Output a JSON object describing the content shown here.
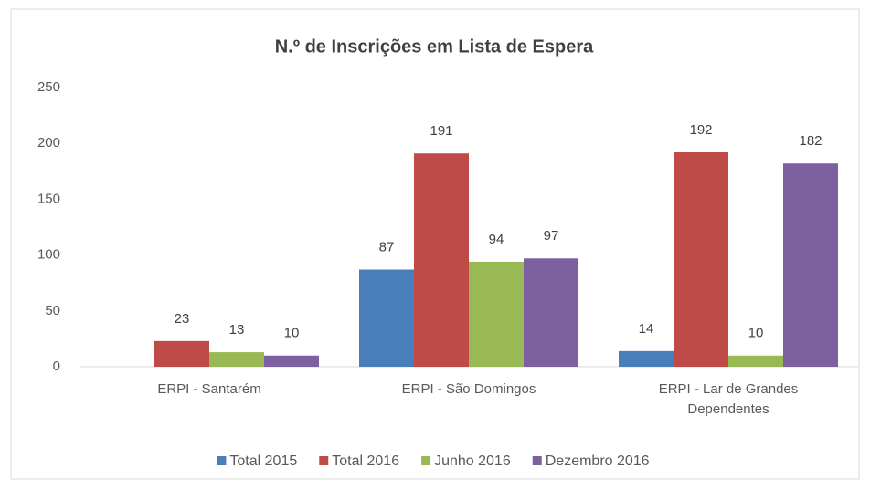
{
  "chart_data": {
    "type": "bar",
    "title": "N.º de Inscrições em Lista de Espera",
    "categories": [
      "ERPI - Santarém",
      "ERPI - São Domingos",
      "ERPI - Lar de Grandes Dependentes"
    ],
    "series": [
      {
        "name": "Total 2015",
        "color": "#4a7ebb",
        "values": [
          null,
          87,
          14
        ]
      },
      {
        "name": "Total 2016",
        "color": "#be4b48",
        "values": [
          23,
          191,
          192
        ]
      },
      {
        "name": "Junho 2016",
        "color": "#98b954",
        "values": [
          13,
          94,
          10
        ]
      },
      {
        "name": "Dezembro 2016",
        "color": "#7d60a0",
        "values": [
          10,
          97,
          182
        ]
      }
    ],
    "ylim": [
      0,
      250
    ],
    "yticks": [
      0,
      50,
      100,
      150,
      200,
      250
    ],
    "grid": false,
    "legend": "bottom"
  }
}
